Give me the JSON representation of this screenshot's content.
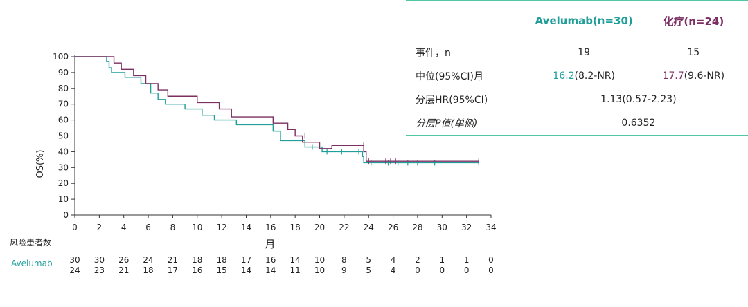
{
  "chart_data": {
    "type": "line",
    "subtype": "kaplan-meier",
    "xlabel": "月",
    "ylabel": "OS(%)",
    "xlim": [
      0,
      34
    ],
    "ylim": [
      0,
      100
    ],
    "x_ticks": [
      "0",
      "2",
      "4",
      "6",
      "8",
      "10",
      "12",
      "14",
      "16",
      "18",
      "20",
      "22",
      "24",
      "26",
      "28",
      "30",
      "32",
      "34"
    ],
    "y_ticks": [
      "0",
      "10",
      "20",
      "30",
      "40",
      "50",
      "60",
      "70",
      "80",
      "90",
      "100"
    ],
    "grid": false,
    "series": [
      {
        "name": "Avelumab",
        "color": "#1f9e9a",
        "steps": [
          [
            0,
            100
          ],
          [
            2.4,
            100
          ],
          [
            2.6,
            97
          ],
          [
            2.8,
            93
          ],
          [
            3.0,
            90
          ],
          [
            4.0,
            90
          ],
          [
            4.1,
            87
          ],
          [
            5.2,
            87
          ],
          [
            5.4,
            83
          ],
          [
            6.0,
            83
          ],
          [
            6.2,
            77
          ],
          [
            6.6,
            77
          ],
          [
            6.8,
            73
          ],
          [
            7.2,
            73
          ],
          [
            7.4,
            70
          ],
          [
            8.8,
            70
          ],
          [
            9.0,
            67
          ],
          [
            10.2,
            67
          ],
          [
            10.4,
            63
          ],
          [
            11.2,
            63
          ],
          [
            11.4,
            60
          ],
          [
            13.0,
            60
          ],
          [
            13.2,
            57
          ],
          [
            16.0,
            57
          ],
          [
            16.2,
            53
          ],
          [
            16.6,
            53
          ],
          [
            16.8,
            47
          ],
          [
            18.6,
            47
          ],
          [
            18.8,
            43
          ],
          [
            20.0,
            43
          ],
          [
            20.2,
            40
          ],
          [
            23.4,
            40
          ],
          [
            23.5,
            37
          ],
          [
            23.6,
            33
          ],
          [
            33.0,
            33
          ]
        ],
        "censor": [
          [
            19.4,
            43
          ],
          [
            20.6,
            40
          ],
          [
            21.8,
            40
          ],
          [
            23.2,
            40
          ],
          [
            24.2,
            33
          ],
          [
            25.6,
            33
          ],
          [
            26.4,
            33
          ],
          [
            27.2,
            33
          ],
          [
            28.0,
            33
          ],
          [
            29.4,
            33
          ],
          [
            33.0,
            33
          ]
        ]
      },
      {
        "name": "化疗",
        "color": "#7b2f62",
        "steps": [
          [
            0,
            100
          ],
          [
            3.0,
            100
          ],
          [
            3.2,
            96
          ],
          [
            3.6,
            96
          ],
          [
            3.8,
            92
          ],
          [
            4.6,
            92
          ],
          [
            4.8,
            88
          ],
          [
            5.6,
            88
          ],
          [
            5.8,
            83
          ],
          [
            6.6,
            83
          ],
          [
            6.8,
            79
          ],
          [
            7.4,
            79
          ],
          [
            7.6,
            75
          ],
          [
            9.8,
            75
          ],
          [
            10.0,
            71
          ],
          [
            11.6,
            71
          ],
          [
            11.8,
            67
          ],
          [
            12.6,
            67
          ],
          [
            12.8,
            62
          ],
          [
            16.0,
            62
          ],
          [
            16.2,
            58
          ],
          [
            17.2,
            58
          ],
          [
            17.4,
            54
          ],
          [
            17.8,
            54
          ],
          [
            18.0,
            50
          ],
          [
            18.4,
            50
          ],
          [
            18.6,
            46
          ],
          [
            19.8,
            46
          ],
          [
            20.0,
            42
          ],
          [
            20.8,
            42
          ],
          [
            21.0,
            44
          ],
          [
            23.4,
            44
          ],
          [
            23.6,
            40
          ],
          [
            23.8,
            34
          ],
          [
            33.0,
            34
          ]
        ],
        "censor": [
          [
            18.8,
            50
          ],
          [
            23.6,
            44
          ],
          [
            24.0,
            34
          ],
          [
            25.4,
            34
          ],
          [
            25.8,
            34
          ],
          [
            26.2,
            34
          ],
          [
            33.0,
            34
          ]
        ]
      }
    ],
    "risk_table": {
      "title": "风险患者数",
      "series_label": "Avelumab",
      "x": [
        0,
        2,
        4,
        6,
        8,
        10,
        12,
        14,
        16,
        18,
        20,
        22,
        24,
        26,
        28,
        30,
        32,
        34
      ],
      "avelumab": [
        "30",
        "30",
        "26",
        "24",
        "21",
        "18",
        "18",
        "17",
        "16",
        "14",
        "10",
        "8",
        "5",
        "4",
        "2",
        "1",
        "1",
        "0"
      ],
      "chemo": [
        "24",
        "23",
        "21",
        "18",
        "17",
        "16",
        "15",
        "14",
        "14",
        "11",
        "10",
        "9",
        "5",
        "4",
        "0",
        "0",
        "0",
        "0"
      ]
    }
  },
  "summary_table": {
    "header": {
      "col_a": "Avelumab(n=30)",
      "col_b": "化疗(n=24)"
    },
    "rows": [
      {
        "label": "事件，n",
        "a": "19",
        "b": "15"
      },
      {
        "label": "中位(95%CI)月",
        "a_value": "16.2",
        "a_ci": "(8.2-NR)",
        "b_value": "17.7",
        "b_ci": "(9.6-NR)"
      },
      {
        "label": "分层HR(95%CI)",
        "merged": "1.13(0.57-2.23)"
      },
      {
        "label": "分层P值(单侧)",
        "merged": "0.6352"
      }
    ],
    "colors": {
      "accent_line": "#4fc7a4",
      "avelumab": "#1f9e9a",
      "chemo": "#7b2f62"
    }
  }
}
